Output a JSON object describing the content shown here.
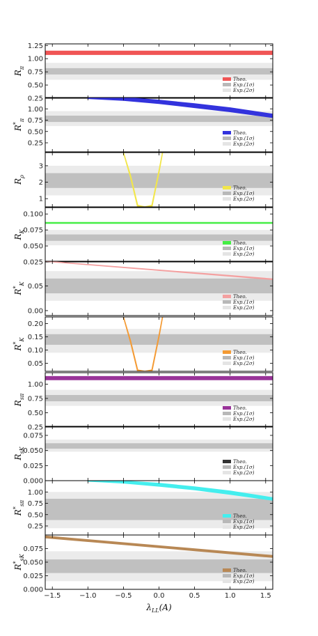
{
  "chart_data": {
    "type": "line",
    "xlabel": "λ_LL(A)",
    "xlim": [
      -1.6,
      1.6
    ],
    "xticks": [
      -1.5,
      -1.0,
      -0.5,
      0.0,
      0.5,
      1.0,
      1.5
    ],
    "xtick_labels": [
      "−1.5",
      "−1.0",
      "−0.5",
      "0.0",
      "0.5",
      "1.0",
      "1.5"
    ],
    "legend_position": "bottom-right",
    "legend_labels": {
      "theo": "Theo.",
      "exp1": "Exp.(1σ)",
      "exp2": "Exp.(2σ)"
    },
    "panels": [
      {
        "ylabel": "R_π",
        "ylim": [
          0.25,
          1.28
        ],
        "yticks": [
          0.25,
          0.5,
          0.75,
          1.0,
          1.25
        ],
        "ytick_labels": [
          "0.25",
          "0.50",
          "0.75",
          "1.00",
          "1.25"
        ],
        "exp1": [
          0.7,
          0.82
        ],
        "exp2": [
          0.6,
          0.92
        ],
        "color": "#f05555",
        "theory": {
          "kind": "line",
          "x": [
            -1.6,
            1.6
          ],
          "lower": [
            1.08,
            1.08
          ],
          "upper": [
            1.14,
            1.14
          ]
        }
      },
      {
        "ylabel": "R*_π",
        "ylim": [
          0.05,
          1.25
        ],
        "yticks": [
          0.25,
          0.5,
          0.75,
          1.0
        ],
        "ytick_labels": [
          "0.25",
          "0.50",
          "0.75",
          "1.00"
        ],
        "exp1": [
          0.71,
          0.85
        ],
        "exp2": [
          0.62,
          0.95
        ],
        "color": "#3333dd",
        "theory": {
          "kind": "line",
          "x": [
            -1.0,
            -0.5,
            0.0,
            0.5,
            1.0,
            1.6
          ],
          "lower": [
            1.23,
            1.19,
            1.12,
            1.03,
            0.94,
            0.81
          ],
          "upper": [
            1.25,
            1.25,
            1.19,
            1.11,
            1.02,
            0.88
          ]
        }
      },
      {
        "ylabel": "R_ρ",
        "ylim": [
          0.5,
          3.8
        ],
        "yticks": [
          1,
          2,
          3
        ],
        "ytick_labels": [
          "1",
          "2",
          "3"
        ],
        "exp1": [
          1.65,
          2.55
        ],
        "exp2": [
          1.2,
          3.0
        ],
        "color": "#f2e64a",
        "theory": {
          "kind": "line",
          "x": [
            -0.5,
            -0.4,
            -0.3,
            -0.2,
            -0.1,
            0.0,
            0.05
          ],
          "lower": [
            3.8,
            2.3,
            0.5,
            0.5,
            0.5,
            2.6,
            3.8
          ],
          "upper": [
            3.8,
            2.4,
            0.6,
            0.5,
            0.6,
            2.7,
            3.8
          ]
        }
      },
      {
        "ylabel": "R_K",
        "ylim": [
          0.025,
          0.11
        ],
        "yticks": [
          0.025,
          0.05,
          0.075,
          0.1
        ],
        "ytick_labels": [
          "0.025",
          "0.050",
          "0.075",
          "0.100"
        ],
        "exp1": [
          0.058,
          0.068
        ],
        "exp2": [
          0.051,
          0.075
        ],
        "color": "#44ee44",
        "theory": {
          "kind": "line",
          "x": [
            -1.6,
            1.6
          ],
          "lower": [
            0.0855,
            0.0855
          ],
          "upper": [
            0.0865,
            0.0865
          ]
        }
      },
      {
        "ylabel": "R*_K",
        "ylim": [
          -0.01,
          0.1
        ],
        "yticks": [
          0.0,
          0.05
        ],
        "ytick_labels": [
          "0.00",
          "0.05"
        ],
        "exp1": [
          0.035,
          0.065
        ],
        "exp2": [
          0.02,
          0.08
        ],
        "color": "#f4a0a0",
        "theory": {
          "kind": "line",
          "x": [
            -1.6,
            1.6
          ],
          "lower": [
            0.1,
            0.063
          ],
          "upper": [
            0.1,
            0.064
          ]
        }
      },
      {
        "ylabel": "R_K*",
        "ylim": [
          0.02,
          0.225
        ],
        "yticks": [
          0.05,
          0.1,
          0.15,
          0.2
        ],
        "ytick_labels": [
          "0.05",
          "0.10",
          "0.15",
          "0.20"
        ],
        "exp1": [
          0.12,
          0.16
        ],
        "exp2": [
          0.09,
          0.18
        ],
        "color": "#f49a33",
        "theory": {
          "kind": "line",
          "x": [
            -0.5,
            -0.4,
            -0.3,
            -0.2,
            -0.1,
            0.0,
            0.05
          ],
          "lower": [
            0.225,
            0.13,
            0.02,
            0.02,
            0.02,
            0.15,
            0.225
          ],
          "upper": [
            0.225,
            0.135,
            0.025,
            0.02,
            0.025,
            0.155,
            0.225
          ]
        }
      },
      {
        "ylabel": "R_sπ",
        "ylim": [
          0.25,
          1.2
        ],
        "yticks": [
          0.25,
          0.5,
          0.75,
          1.0
        ],
        "ytick_labels": [
          "0.25",
          "0.50",
          "0.75",
          "1.00"
        ],
        "exp1": [
          0.7,
          0.81
        ],
        "exp2": [
          0.62,
          0.9
        ],
        "color": "#993399",
        "theory": {
          "kind": "line",
          "x": [
            -1.6,
            1.6
          ],
          "lower": [
            1.08,
            1.08
          ],
          "upper": [
            1.13,
            1.13
          ]
        }
      },
      {
        "ylabel": "R_sK",
        "ylim": [
          0.0,
          0.09
        ],
        "yticks": [
          0.0,
          0.025,
          0.05,
          0.075
        ],
        "ytick_labels": [
          "0.000",
          "0.025",
          "0.050",
          "0.075"
        ],
        "exp1": [
          0.053,
          0.062
        ],
        "exp2": [
          0.048,
          0.068
        ],
        "color": "#333333",
        "theory": {
          "kind": "none"
        }
      },
      {
        "ylabel": "R*_sπ",
        "ylim": [
          0.05,
          1.25
        ],
        "yticks": [
          0.25,
          0.5,
          0.75,
          1.0
        ],
        "ytick_labels": [
          "0.25",
          "0.50",
          "0.75",
          "1.00"
        ],
        "exp1": [
          0.38,
          0.85
        ],
        "exp2": [
          0.2,
          1.0
        ],
        "color": "#44eeee",
        "theory": {
          "kind": "line",
          "x": [
            -1.0,
            -0.5,
            0.0,
            0.5,
            1.0,
            1.6
          ],
          "lower": [
            1.24,
            1.2,
            1.13,
            1.05,
            0.95,
            0.82
          ],
          "upper": [
            1.25,
            1.24,
            1.19,
            1.11,
            1.02,
            0.87
          ]
        }
      },
      {
        "ylabel": "R*_sK",
        "ylim": [
          0.0,
          0.1
        ],
        "yticks": [
          0.0,
          0.025,
          0.05,
          0.075
        ],
        "ytick_labels": [
          "0.000",
          "0.025",
          "0.050",
          "0.075"
        ],
        "exp1": [
          0.03,
          0.055
        ],
        "exp2": [
          0.015,
          0.07
        ],
        "color": "#b88855",
        "theory": {
          "kind": "line",
          "x": [
            -1.6,
            1.6
          ],
          "lower": [
            0.095,
            0.059
          ],
          "upper": [
            0.098,
            0.062
          ]
        }
      }
    ]
  }
}
